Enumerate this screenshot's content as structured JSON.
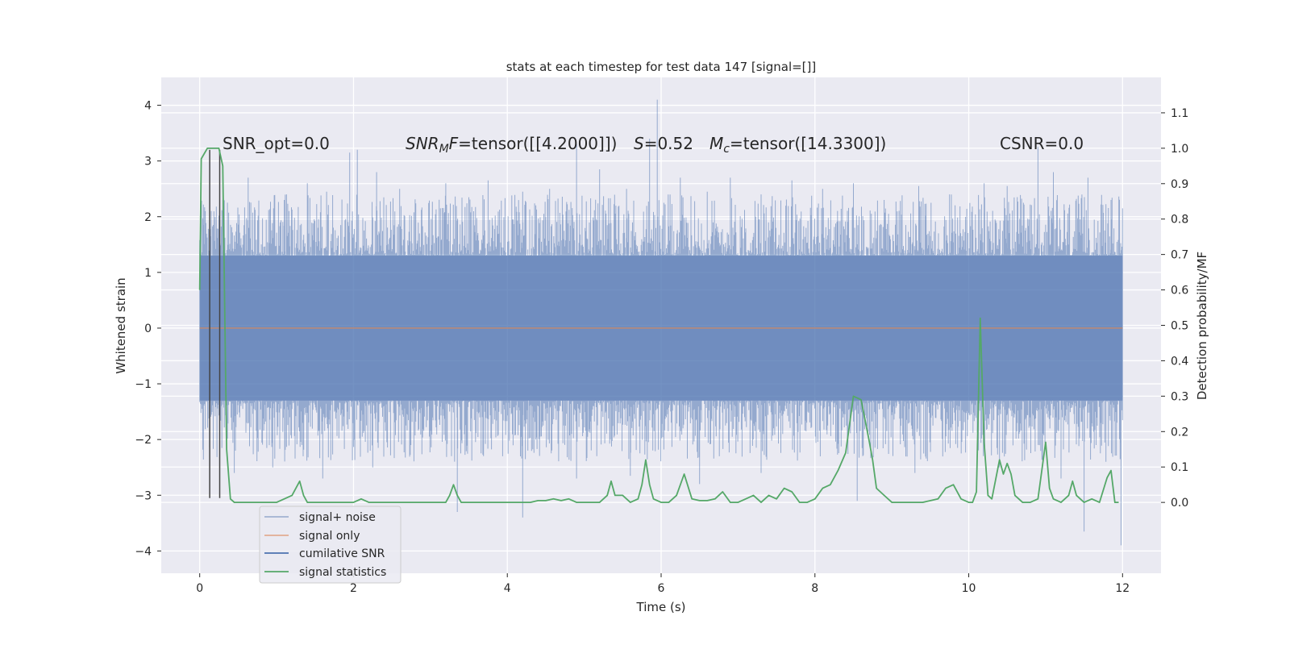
{
  "chart_data": {
    "type": "line",
    "title": "stats at each timestep for test data 147 [signal=[]]",
    "xlabel": "Time (s)",
    "ylabel": "Whitened strain",
    "ylabel_right": "Detection probability/MF",
    "xlim": [
      -0.5,
      12.5
    ],
    "ylim": [
      -4.4,
      4.5
    ],
    "ylim_right": [
      -0.2,
      1.2
    ],
    "x_ticks": [
      0,
      2,
      4,
      6,
      8,
      10,
      12
    ],
    "y_ticks": [
      -4,
      -3,
      -2,
      -1,
      0,
      1,
      2,
      3,
      4
    ],
    "y_ticks_right": [
      0.0,
      0.1,
      0.2,
      0.3,
      0.4,
      0.5,
      0.6,
      0.7,
      0.8,
      0.9,
      1.0,
      1.1
    ],
    "grid": true,
    "legend_position": "lower-left",
    "annotations": {
      "snr_opt": "SNR_opt=0.0",
      "snr_mf_prefix": "SNR",
      "snr_mf_sub": "M",
      "snr_mf_suffix": "F",
      "snr_mf_value": "=tensor([[4.2000]])",
      "s_symbol": "S",
      "s_value": "=0.52",
      "mc_symbol": "M",
      "mc_sub": "c",
      "mc_value": "=tensor([14.3300])",
      "csnr": "CSNR=0.0"
    },
    "series": [
      {
        "name": "signal+ noise",
        "color": "#4c72b0",
        "style": "dense noise, |amplitude| mostly within 1.3, spikes up to 4.1 and down to -3.9",
        "core_range": [
          -1.3,
          1.3
        ],
        "x_start": 0,
        "x_end": 12,
        "peaks": [
          {
            "x": 0.05,
            "y": 1.85
          },
          {
            "x": 0.15,
            "y": 2.1
          },
          {
            "x": 0.3,
            "y": 2.3
          },
          {
            "x": 0.63,
            "y": 2.7
          },
          {
            "x": 1.1,
            "y": 2.3
          },
          {
            "x": 1.4,
            "y": 2.6
          },
          {
            "x": 1.65,
            "y": 2.45
          },
          {
            "x": 1.95,
            "y": 3.15
          },
          {
            "x": 2.05,
            "y": 3.2
          },
          {
            "x": 2.3,
            "y": 2.8
          },
          {
            "x": 2.6,
            "y": 2.5
          },
          {
            "x": 3.2,
            "y": 2.6
          },
          {
            "x": 3.5,
            "y": 2.35
          },
          {
            "x": 3.75,
            "y": 2.65
          },
          {
            "x": 4.2,
            "y": 2.45
          },
          {
            "x": 4.55,
            "y": 2.5
          },
          {
            "x": 4.9,
            "y": 3.3
          },
          {
            "x": 5.2,
            "y": 2.85
          },
          {
            "x": 5.55,
            "y": 2.5
          },
          {
            "x": 5.85,
            "y": 3.4
          },
          {
            "x": 5.95,
            "y": 4.1
          },
          {
            "x": 6.25,
            "y": 2.7
          },
          {
            "x": 6.6,
            "y": 2.45
          },
          {
            "x": 6.9,
            "y": 2.7
          },
          {
            "x": 7.3,
            "y": 2.4
          },
          {
            "x": 7.7,
            "y": 2.65
          },
          {
            "x": 8.1,
            "y": 2.5
          },
          {
            "x": 8.5,
            "y": 2.6
          },
          {
            "x": 8.9,
            "y": 2.3
          },
          {
            "x": 9.35,
            "y": 2.55
          },
          {
            "x": 9.75,
            "y": 2.4
          },
          {
            "x": 10.2,
            "y": 2.6
          },
          {
            "x": 10.5,
            "y": 2.55
          },
          {
            "x": 10.9,
            "y": 3.25
          },
          {
            "x": 11.1,
            "y": 2.8
          },
          {
            "x": 11.55,
            "y": 2.7
          },
          {
            "x": 11.85,
            "y": 2.3
          }
        ],
        "troughs": [
          {
            "x": 0.45,
            "y": -2.6
          },
          {
            "x": 0.95,
            "y": -2.5
          },
          {
            "x": 1.6,
            "y": -2.7
          },
          {
            "x": 2.25,
            "y": -2.5
          },
          {
            "x": 3.35,
            "y": -3.3
          },
          {
            "x": 4.2,
            "y": -3.4
          },
          {
            "x": 4.9,
            "y": -2.7
          },
          {
            "x": 5.6,
            "y": -2.65
          },
          {
            "x": 6.5,
            "y": -2.8
          },
          {
            "x": 7.3,
            "y": -2.6
          },
          {
            "x": 8.55,
            "y": -3.1
          },
          {
            "x": 9.3,
            "y": -2.6
          },
          {
            "x": 10.4,
            "y": -2.5
          },
          {
            "x": 11.2,
            "y": -2.7
          },
          {
            "x": 11.5,
            "y": -3.65
          },
          {
            "x": 11.98,
            "y": -3.9
          }
        ]
      },
      {
        "name": "signal only",
        "color": "#dd8452",
        "x": [
          0,
          12
        ],
        "y": [
          0,
          0
        ]
      },
      {
        "name": "cumilative SNR",
        "color": "#4c72b0",
        "x": [],
        "y": []
      },
      {
        "name": "signal statistics",
        "color": "#55a868",
        "axis": "right",
        "x": [
          0,
          0.02,
          0.1,
          0.18,
          0.25,
          0.3,
          0.35,
          0.4,
          0.45,
          0.5,
          0.6,
          0.8,
          1.0,
          1.2,
          1.3,
          1.35,
          1.4,
          1.6,
          1.8,
          2.0,
          2.1,
          2.2,
          2.3,
          2.5,
          2.8,
          3.1,
          3.2,
          3.25,
          3.3,
          3.35,
          3.4,
          3.6,
          3.9,
          4.1,
          4.3,
          4.4,
          4.5,
          4.6,
          4.7,
          4.8,
          4.9,
          5.0,
          5.1,
          5.2,
          5.3,
          5.35,
          5.4,
          5.5,
          5.6,
          5.7,
          5.75,
          5.8,
          5.85,
          5.9,
          6.0,
          6.1,
          6.2,
          6.3,
          6.4,
          6.5,
          6.6,
          6.7,
          6.8,
          6.9,
          7.0,
          7.1,
          7.2,
          7.3,
          7.4,
          7.5,
          7.6,
          7.7,
          7.8,
          7.9,
          8.0,
          8.1,
          8.2,
          8.3,
          8.4,
          8.5,
          8.6,
          8.7,
          8.75,
          8.8,
          8.9,
          9.0,
          9.2,
          9.4,
          9.6,
          9.7,
          9.8,
          9.9,
          10.0,
          10.05,
          10.1,
          10.15,
          10.2,
          10.25,
          10.3,
          10.4,
          10.45,
          10.5,
          10.55,
          10.6,
          10.7,
          10.8,
          10.9,
          11.0,
          11.05,
          11.1,
          11.2,
          11.3,
          11.35,
          11.4,
          11.5,
          11.6,
          11.7,
          11.8,
          11.85,
          11.9,
          11.95
        ],
        "y": [
          0.6,
          0.97,
          1.0,
          1.0,
          1.0,
          0.95,
          0.15,
          0.01,
          0.0,
          0.0,
          0.0,
          0.0,
          0.0,
          0.02,
          0.06,
          0.02,
          0.0,
          0.0,
          0.0,
          0.0,
          0.01,
          0.0,
          0.0,
          0.0,
          0.0,
          0.0,
          0.0,
          0.02,
          0.05,
          0.02,
          0.0,
          0.0,
          0.0,
          0.0,
          0.0,
          0.005,
          0.005,
          0.01,
          0.005,
          0.01,
          0.0,
          0.0,
          0.0,
          0.0,
          0.02,
          0.06,
          0.02,
          0.02,
          0.0,
          0.01,
          0.05,
          0.12,
          0.05,
          0.01,
          0.0,
          0.0,
          0.02,
          0.08,
          0.01,
          0.005,
          0.005,
          0.01,
          0.03,
          0.0,
          0.0,
          0.01,
          0.02,
          0.0,
          0.02,
          0.01,
          0.04,
          0.03,
          0.0,
          0.0,
          0.01,
          0.04,
          0.05,
          0.09,
          0.14,
          0.3,
          0.29,
          0.18,
          0.12,
          0.04,
          0.02,
          0.0,
          0.0,
          0.0,
          0.01,
          0.04,
          0.05,
          0.01,
          0.0,
          0.0,
          0.03,
          0.52,
          0.17,
          0.02,
          0.01,
          0.12,
          0.08,
          0.11,
          0.08,
          0.02,
          0.0,
          0.0,
          0.01,
          0.17,
          0.04,
          0.01,
          0.0,
          0.02,
          0.06,
          0.02,
          0.0,
          0.01,
          0.0,
          0.07,
          0.09,
          0.0,
          0.0
        ]
      }
    ],
    "markers": {
      "type": "vertical lines",
      "color": "#444444",
      "x": [
        0.13,
        0.26
      ],
      "y_range": [
        -3.05,
        3.2
      ]
    }
  }
}
